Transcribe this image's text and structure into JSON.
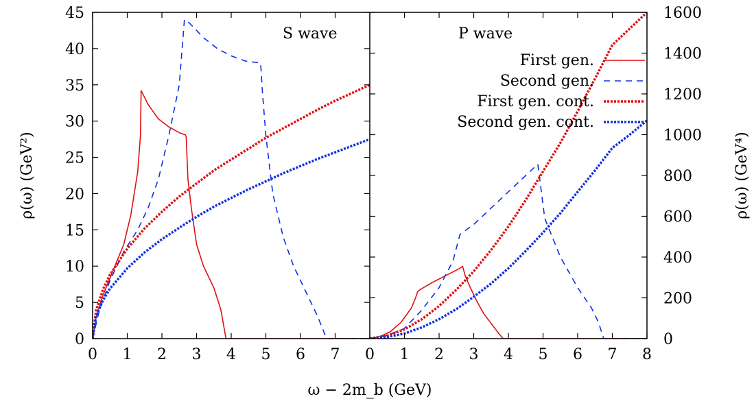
{
  "chart_data": [
    {
      "type": "line",
      "panel": "left",
      "label": "S wave",
      "xlim": [
        0,
        8
      ],
      "ylim": [
        0,
        45
      ],
      "xticks": [
        0,
        1,
        2,
        3,
        4,
        5,
        6,
        7
      ],
      "yticks": [
        0,
        5,
        10,
        15,
        20,
        25,
        30,
        35,
        40,
        45
      ],
      "ylabel": "ρ(ω) (GeV²)",
      "series": [
        {
          "name": "First gen.",
          "color": "#e01010",
          "dash": "solid",
          "points": [
            [
              0,
              0
            ],
            [
              0.1,
              3
            ],
            [
              0.3,
              6
            ],
            [
              0.6,
              9.5
            ],
            [
              0.9,
              13
            ],
            [
              1.1,
              17
            ],
            [
              1.3,
              23
            ],
            [
              1.38,
              28
            ],
            [
              1.4,
              34.2
            ],
            [
              1.6,
              32.3
            ],
            [
              1.9,
              30.3
            ],
            [
              2.2,
              29.2
            ],
            [
              2.5,
              28.4
            ],
            [
              2.68,
              28.1
            ],
            [
              2.7,
              27.8
            ],
            [
              2.75,
              22
            ],
            [
              2.85,
              18
            ],
            [
              3.0,
              13
            ],
            [
              3.2,
              10
            ],
            [
              3.5,
              7
            ],
            [
              3.7,
              4
            ],
            [
              3.85,
              0
            ],
            [
              8,
              0
            ]
          ]
        },
        {
          "name": "Second gen.",
          "color": "#1030e0",
          "dash": "dashed",
          "points": [
            [
              0,
              0
            ],
            [
              0.2,
              4
            ],
            [
              0.5,
              8
            ],
            [
              0.9,
              12
            ],
            [
              1.3,
              15
            ],
            [
              1.6,
              18
            ],
            [
              1.9,
              22
            ],
            [
              2.2,
              28
            ],
            [
              2.5,
              35
            ],
            [
              2.65,
              44
            ],
            [
              2.8,
              43.5
            ],
            [
              3.2,
              41.5
            ],
            [
              3.6,
              40
            ],
            [
              4.0,
              39
            ],
            [
              4.4,
              38.3
            ],
            [
              4.85,
              38
            ],
            [
              4.9,
              34
            ],
            [
              5.0,
              28
            ],
            [
              5.2,
              20
            ],
            [
              5.5,
              14
            ],
            [
              5.8,
              10
            ],
            [
              6.2,
              6
            ],
            [
              6.5,
              3
            ],
            [
              6.75,
              0
            ],
            [
              8,
              0
            ]
          ]
        },
        {
          "name": "First gen. cont.",
          "color": "#e01010",
          "dash": "dotted",
          "points": [
            [
              0,
              0
            ],
            [
              0.1,
              3.9
            ],
            [
              0.3,
              6.8
            ],
            [
              0.5,
              8.8
            ],
            [
              1,
              12.4
            ],
            [
              1.5,
              15.2
            ],
            [
              2,
              17.5
            ],
            [
              2.5,
              19.6
            ],
            [
              3,
              21.4
            ],
            [
              3.5,
              23.2
            ],
            [
              4,
              24.7
            ],
            [
              4.5,
              26.2
            ],
            [
              5,
              27.7
            ],
            [
              5.5,
              29
            ],
            [
              6,
              30.3
            ],
            [
              6.5,
              31.6
            ],
            [
              7,
              32.8
            ],
            [
              7.5,
              33.9
            ],
            [
              8,
              35
            ]
          ]
        },
        {
          "name": "Second gen. cont.",
          "color": "#1030e0",
          "dash": "dotted",
          "points": [
            [
              0,
              0
            ],
            [
              0.1,
              3.1
            ],
            [
              0.3,
              5.3
            ],
            [
              0.5,
              6.9
            ],
            [
              1,
              9.7
            ],
            [
              1.5,
              11.9
            ],
            [
              2,
              13.7
            ],
            [
              2.5,
              15.3
            ],
            [
              3,
              16.8
            ],
            [
              3.5,
              18.2
            ],
            [
              4,
              19.4
            ],
            [
              4.5,
              20.6
            ],
            [
              5,
              21.7
            ],
            [
              5.5,
              22.8
            ],
            [
              6,
              23.8
            ],
            [
              6.5,
              24.8
            ],
            [
              7,
              25.7
            ],
            [
              7.5,
              26.6
            ],
            [
              8,
              27.5
            ]
          ]
        }
      ]
    },
    {
      "type": "line",
      "panel": "right",
      "label": "P wave",
      "xlim": [
        0,
        8
      ],
      "ylim": [
        0,
        1600
      ],
      "xticks": [
        0,
        1,
        2,
        3,
        4,
        5,
        6,
        7,
        8
      ],
      "yticks": [
        0,
        200,
        400,
        600,
        800,
        1000,
        1200,
        1400,
        1600
      ],
      "ylabel": "ρ(ω) (GeV⁴)",
      "legend": {
        "placement": "top-right",
        "entries": [
          "First gen.",
          "Second gen.",
          "First gen. cont.",
          "Second gen. cont."
        ]
      },
      "series": [
        {
          "name": "First gen.",
          "color": "#e01010",
          "dash": "solid",
          "points": [
            [
              0,
              0
            ],
            [
              0.3,
              10
            ],
            [
              0.6,
              35
            ],
            [
              0.9,
              80
            ],
            [
              1.2,
              150
            ],
            [
              1.32,
              200
            ],
            [
              1.38,
              230
            ],
            [
              1.45,
              240
            ],
            [
              1.8,
              275
            ],
            [
              2.2,
              310
            ],
            [
              2.6,
              345
            ],
            [
              2.68,
              355
            ],
            [
              2.75,
              310
            ],
            [
              2.9,
              250
            ],
            [
              3.1,
              180
            ],
            [
              3.3,
              120
            ],
            [
              3.5,
              75
            ],
            [
              3.7,
              30
            ],
            [
              3.85,
              0
            ],
            [
              8,
              0
            ]
          ]
        },
        {
          "name": "Second gen.",
          "color": "#1030e0",
          "dash": "dashed",
          "points": [
            [
              0,
              0
            ],
            [
              0.5,
              15
            ],
            [
              1.0,
              50
            ],
            [
              1.5,
              140
            ],
            [
              2.0,
              250
            ],
            [
              2.4,
              380
            ],
            [
              2.6,
              510
            ],
            [
              3.0,
              560
            ],
            [
              3.5,
              640
            ],
            [
              4.0,
              720
            ],
            [
              4.5,
              800
            ],
            [
              4.85,
              855
            ],
            [
              5.05,
              590
            ],
            [
              5.5,
              400
            ],
            [
              6.0,
              250
            ],
            [
              6.4,
              150
            ],
            [
              6.6,
              80
            ],
            [
              6.75,
              0
            ],
            [
              8,
              0
            ]
          ]
        },
        {
          "name": "First gen. cont.",
          "color": "#e01010",
          "dash": "dotted",
          "points": [
            [
              0,
              0
            ],
            [
              0.5,
              15
            ],
            [
              1,
              45
            ],
            [
              1.5,
              95
            ],
            [
              2,
              160
            ],
            [
              2.5,
              240
            ],
            [
              3,
              330
            ],
            [
              3.5,
              435
            ],
            [
              4,
              550
            ],
            [
              4.5,
              680
            ],
            [
              5,
              820
            ],
            [
              5.5,
              960
            ],
            [
              6,
              1115
            ],
            [
              6.5,
              1275
            ],
            [
              7,
              1440
            ],
            [
              7.5,
              1520
            ],
            [
              8,
              1600
            ]
          ]
        },
        {
          "name": "Second gen. cont.",
          "color": "#1030e0",
          "dash": "dotted",
          "points": [
            [
              0,
              0
            ],
            [
              0.5,
              8
            ],
            [
              1,
              25
            ],
            [
              1.5,
              55
            ],
            [
              2,
              95
            ],
            [
              2.5,
              145
            ],
            [
              3,
              205
            ],
            [
              3.5,
              270
            ],
            [
              4,
              345
            ],
            [
              4.5,
              430
            ],
            [
              5,
              520
            ],
            [
              5.5,
              615
            ],
            [
              6,
              720
            ],
            [
              6.5,
              825
            ],
            [
              7,
              935
            ],
            [
              7.5,
              1000
            ],
            [
              8,
              1070
            ]
          ]
        }
      ]
    }
  ],
  "xlabel": "ω − 2m_b (GeV)"
}
